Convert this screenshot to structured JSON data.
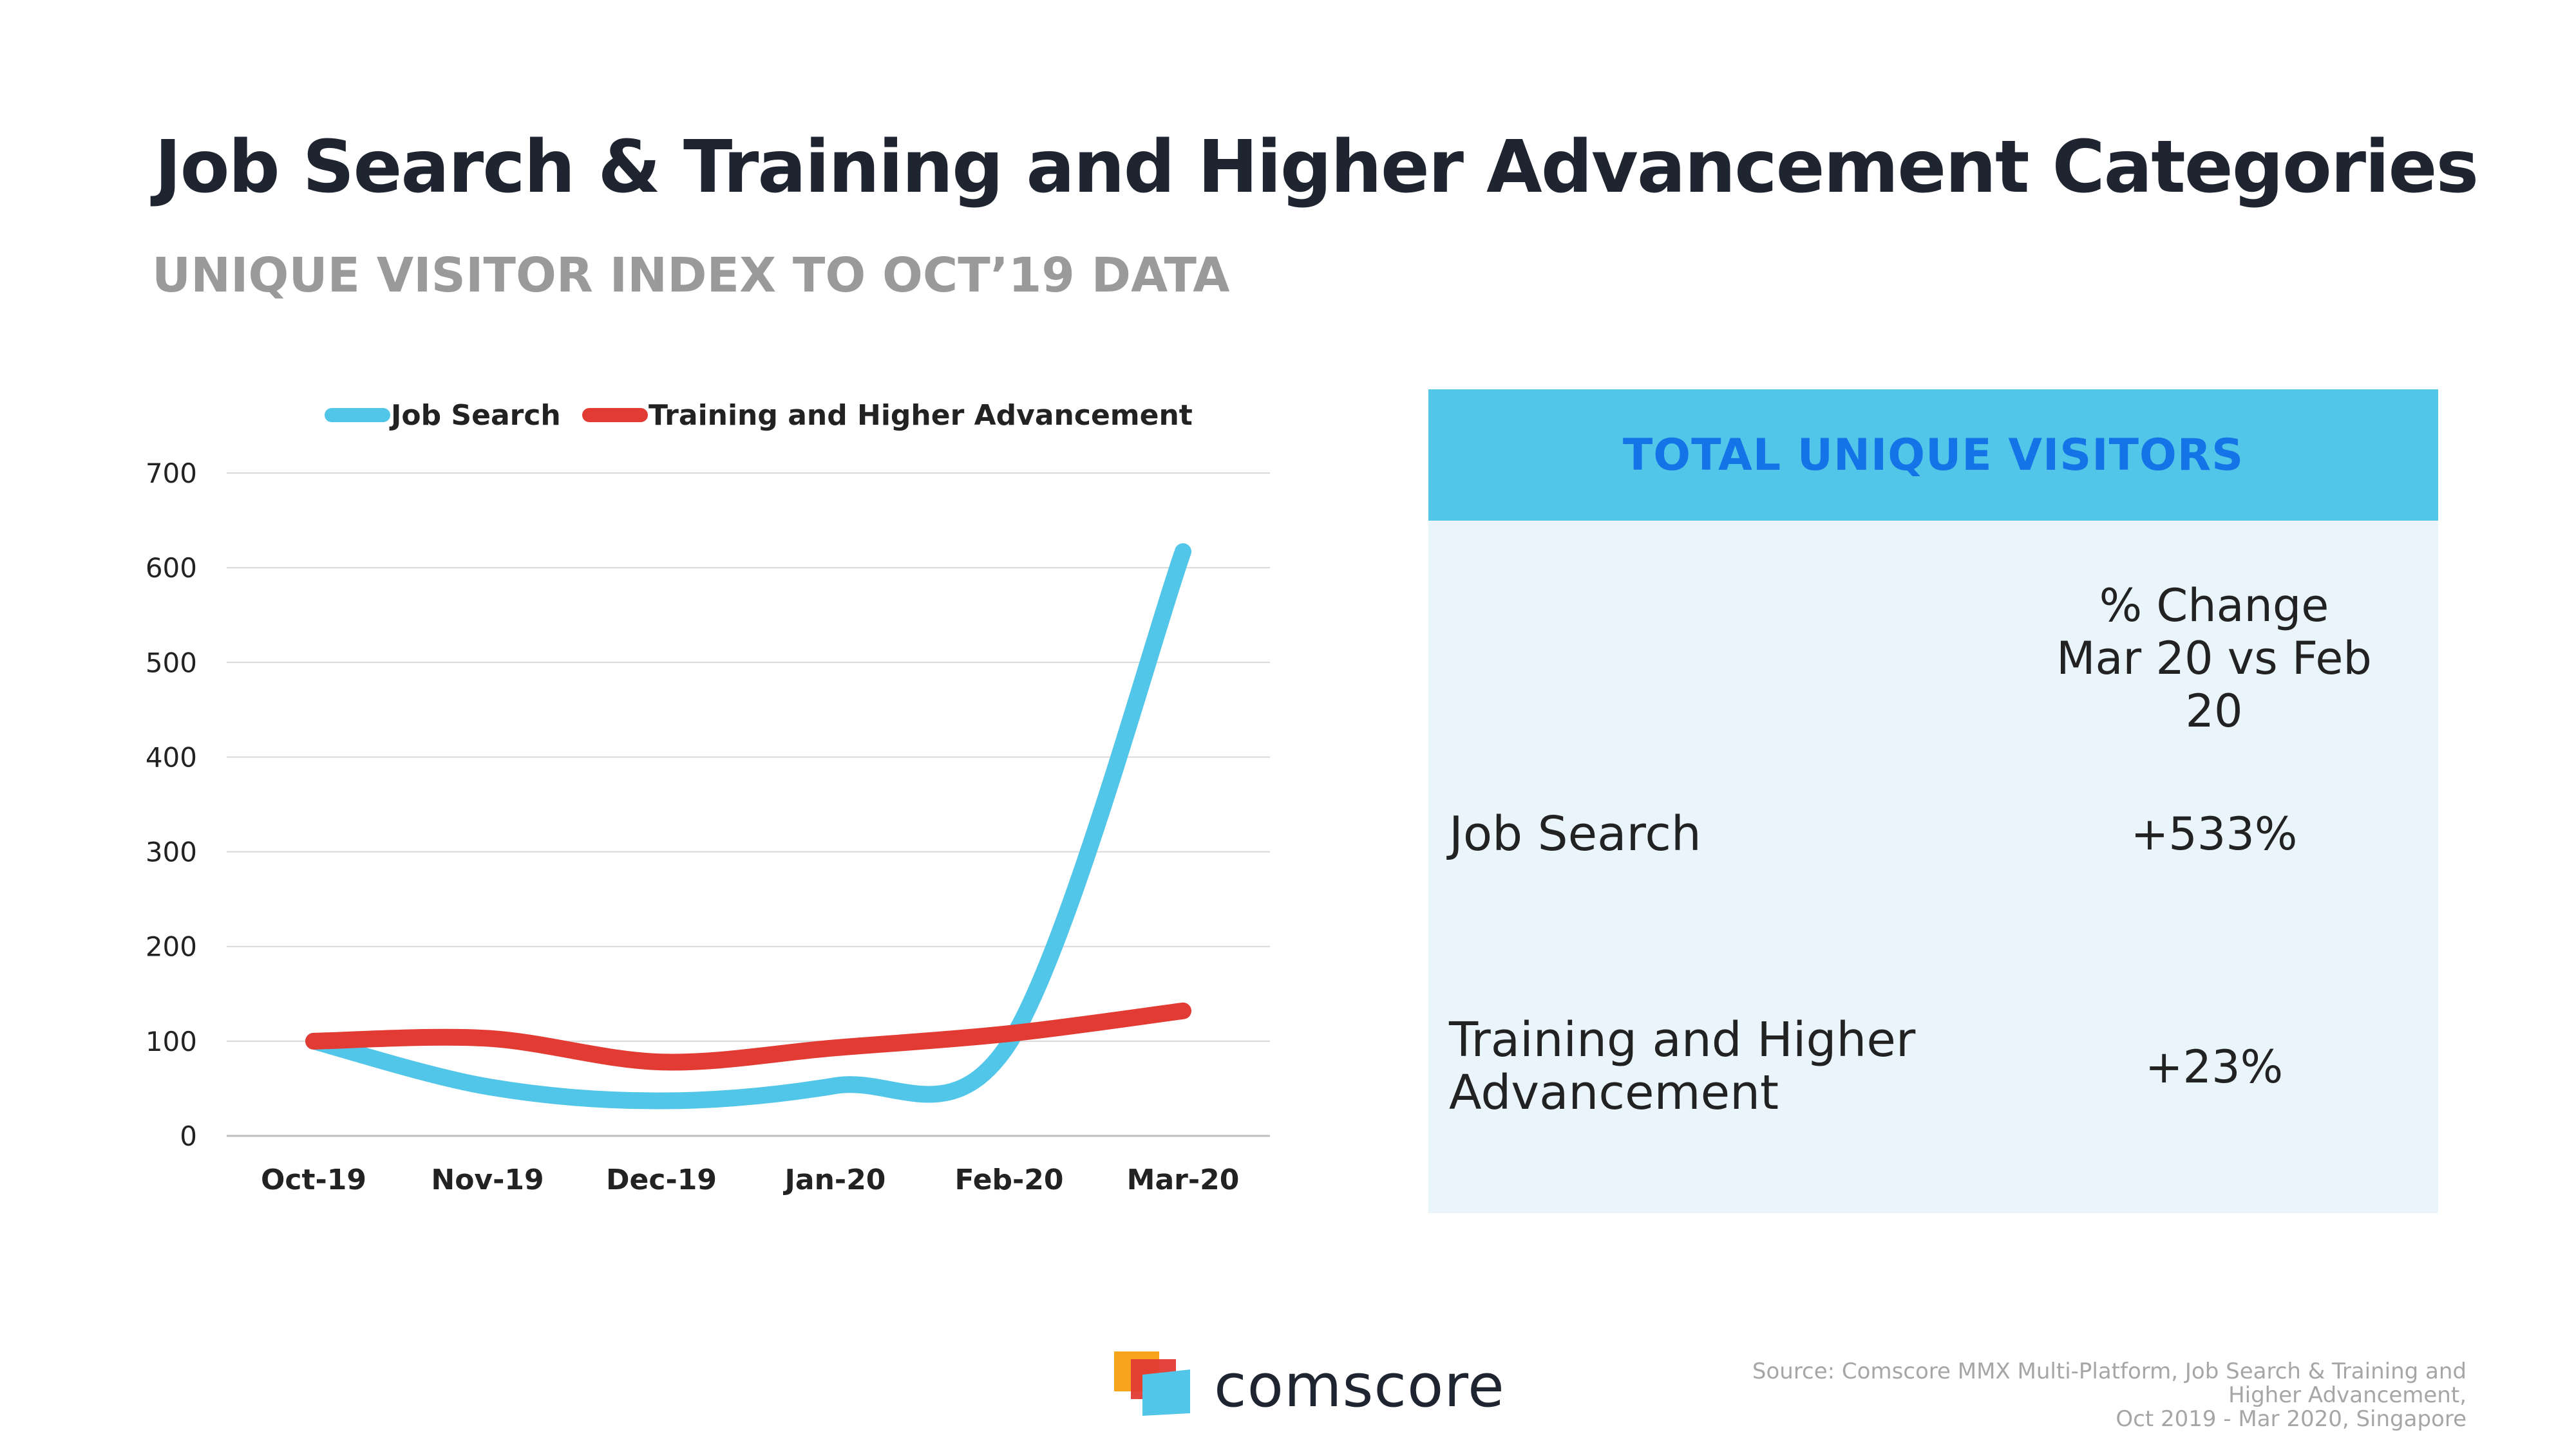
{
  "header": {
    "title": "Job Search & Training and Higher Advancement Categories",
    "subtitle": "UNIQUE VISITOR INDEX TO OCT’19 DATA"
  },
  "chart_data": {
    "type": "line",
    "categories": [
      "Oct-19",
      "Nov-19",
      "Dec-19",
      "Jan-20",
      "Feb-20",
      "Mar-20"
    ],
    "series": [
      {
        "name": "Job Search",
        "color": "#52c6e8",
        "values": [
          100,
          52,
          37,
          53,
          98,
          617
        ]
      },
      {
        "name": "Training and Higher Advancement",
        "color": "#e23b34",
        "values": [
          100,
          103,
          78,
          93,
          108,
          132
        ]
      }
    ],
    "yticks": [
      0,
      100,
      200,
      300,
      400,
      500,
      600,
      700
    ],
    "ylim": [
      0,
      700
    ],
    "grid": true,
    "legend": "top",
    "title": "",
    "xlabel": "",
    "ylabel": ""
  },
  "table": {
    "title": "TOTAL UNIQUE VISITORS",
    "column_header_line1": "% Change",
    "column_header_line2": "Mar 20 vs Feb 20",
    "rows": [
      {
        "label_line1": "Job Search",
        "label_line2": "",
        "value": "+533%"
      },
      {
        "label_line1": "Training and Higher",
        "label_line2": "Advancement",
        "value": "+23%"
      }
    ]
  },
  "footer": {
    "brand": "comscore",
    "source_lines": [
      "Source: Comscore MMX Multi-Platform, Job Search & Training and",
      "Higher Advancement,",
      "Oct 2019 - Mar 2020, Singapore"
    ]
  }
}
